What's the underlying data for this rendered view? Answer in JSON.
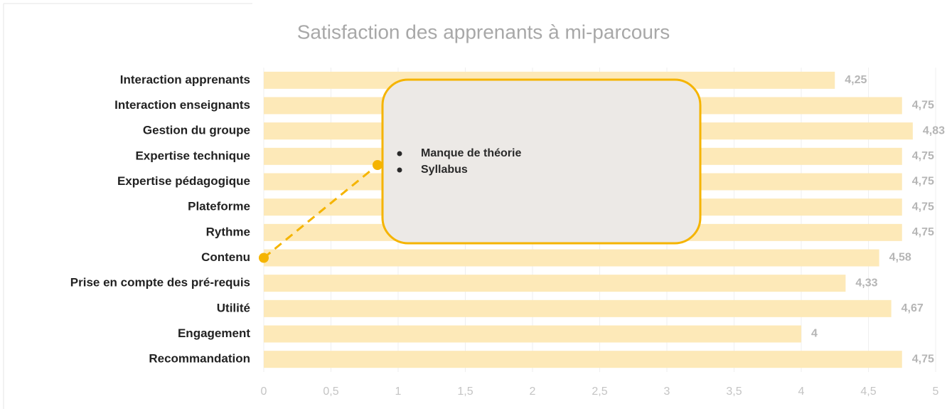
{
  "chart_data": {
    "type": "bar",
    "orientation": "horizontal",
    "title": "Satisfaction des apprenants à mi-parcours",
    "categories": [
      "Interaction apprenants",
      "Interaction enseignants",
      "Gestion du groupe",
      "Expertise technique",
      "Expertise pédagogique",
      "Plateforme",
      "Rythme",
      "Contenu",
      "Prise en compte des pré-requis",
      "Utilité",
      "Engagement",
      "Recommandation"
    ],
    "values": [
      4.25,
      4.75,
      4.83,
      4.75,
      4.75,
      4.75,
      4.75,
      4.58,
      4.33,
      4.67,
      4,
      4.75
    ],
    "value_labels": [
      "4,25",
      "4,75",
      "4,83",
      "4,75",
      "4,75",
      "4,75",
      "4,75",
      "4,58",
      "4,33",
      "4,67",
      "4",
      "4,75"
    ],
    "color": "#fde9b8",
    "xlim": [
      0,
      5
    ],
    "xticks": [
      0,
      {
        "value": 0.5,
        "label": "0,5"
      },
      1,
      {
        "value": 1.5,
        "label": "1,5"
      },
      2,
      {
        "value": 2.5,
        "label": "2,5"
      },
      3,
      {
        "value": 3.5,
        "label": "3,5"
      },
      4,
      {
        "value": 4.5,
        "label": "4,5"
      },
      5
    ],
    "grid": true,
    "annotation": {
      "category": "Contenu",
      "items": [
        "Manque de théorie",
        "Syllabus"
      ],
      "color": "#f5b400"
    }
  }
}
